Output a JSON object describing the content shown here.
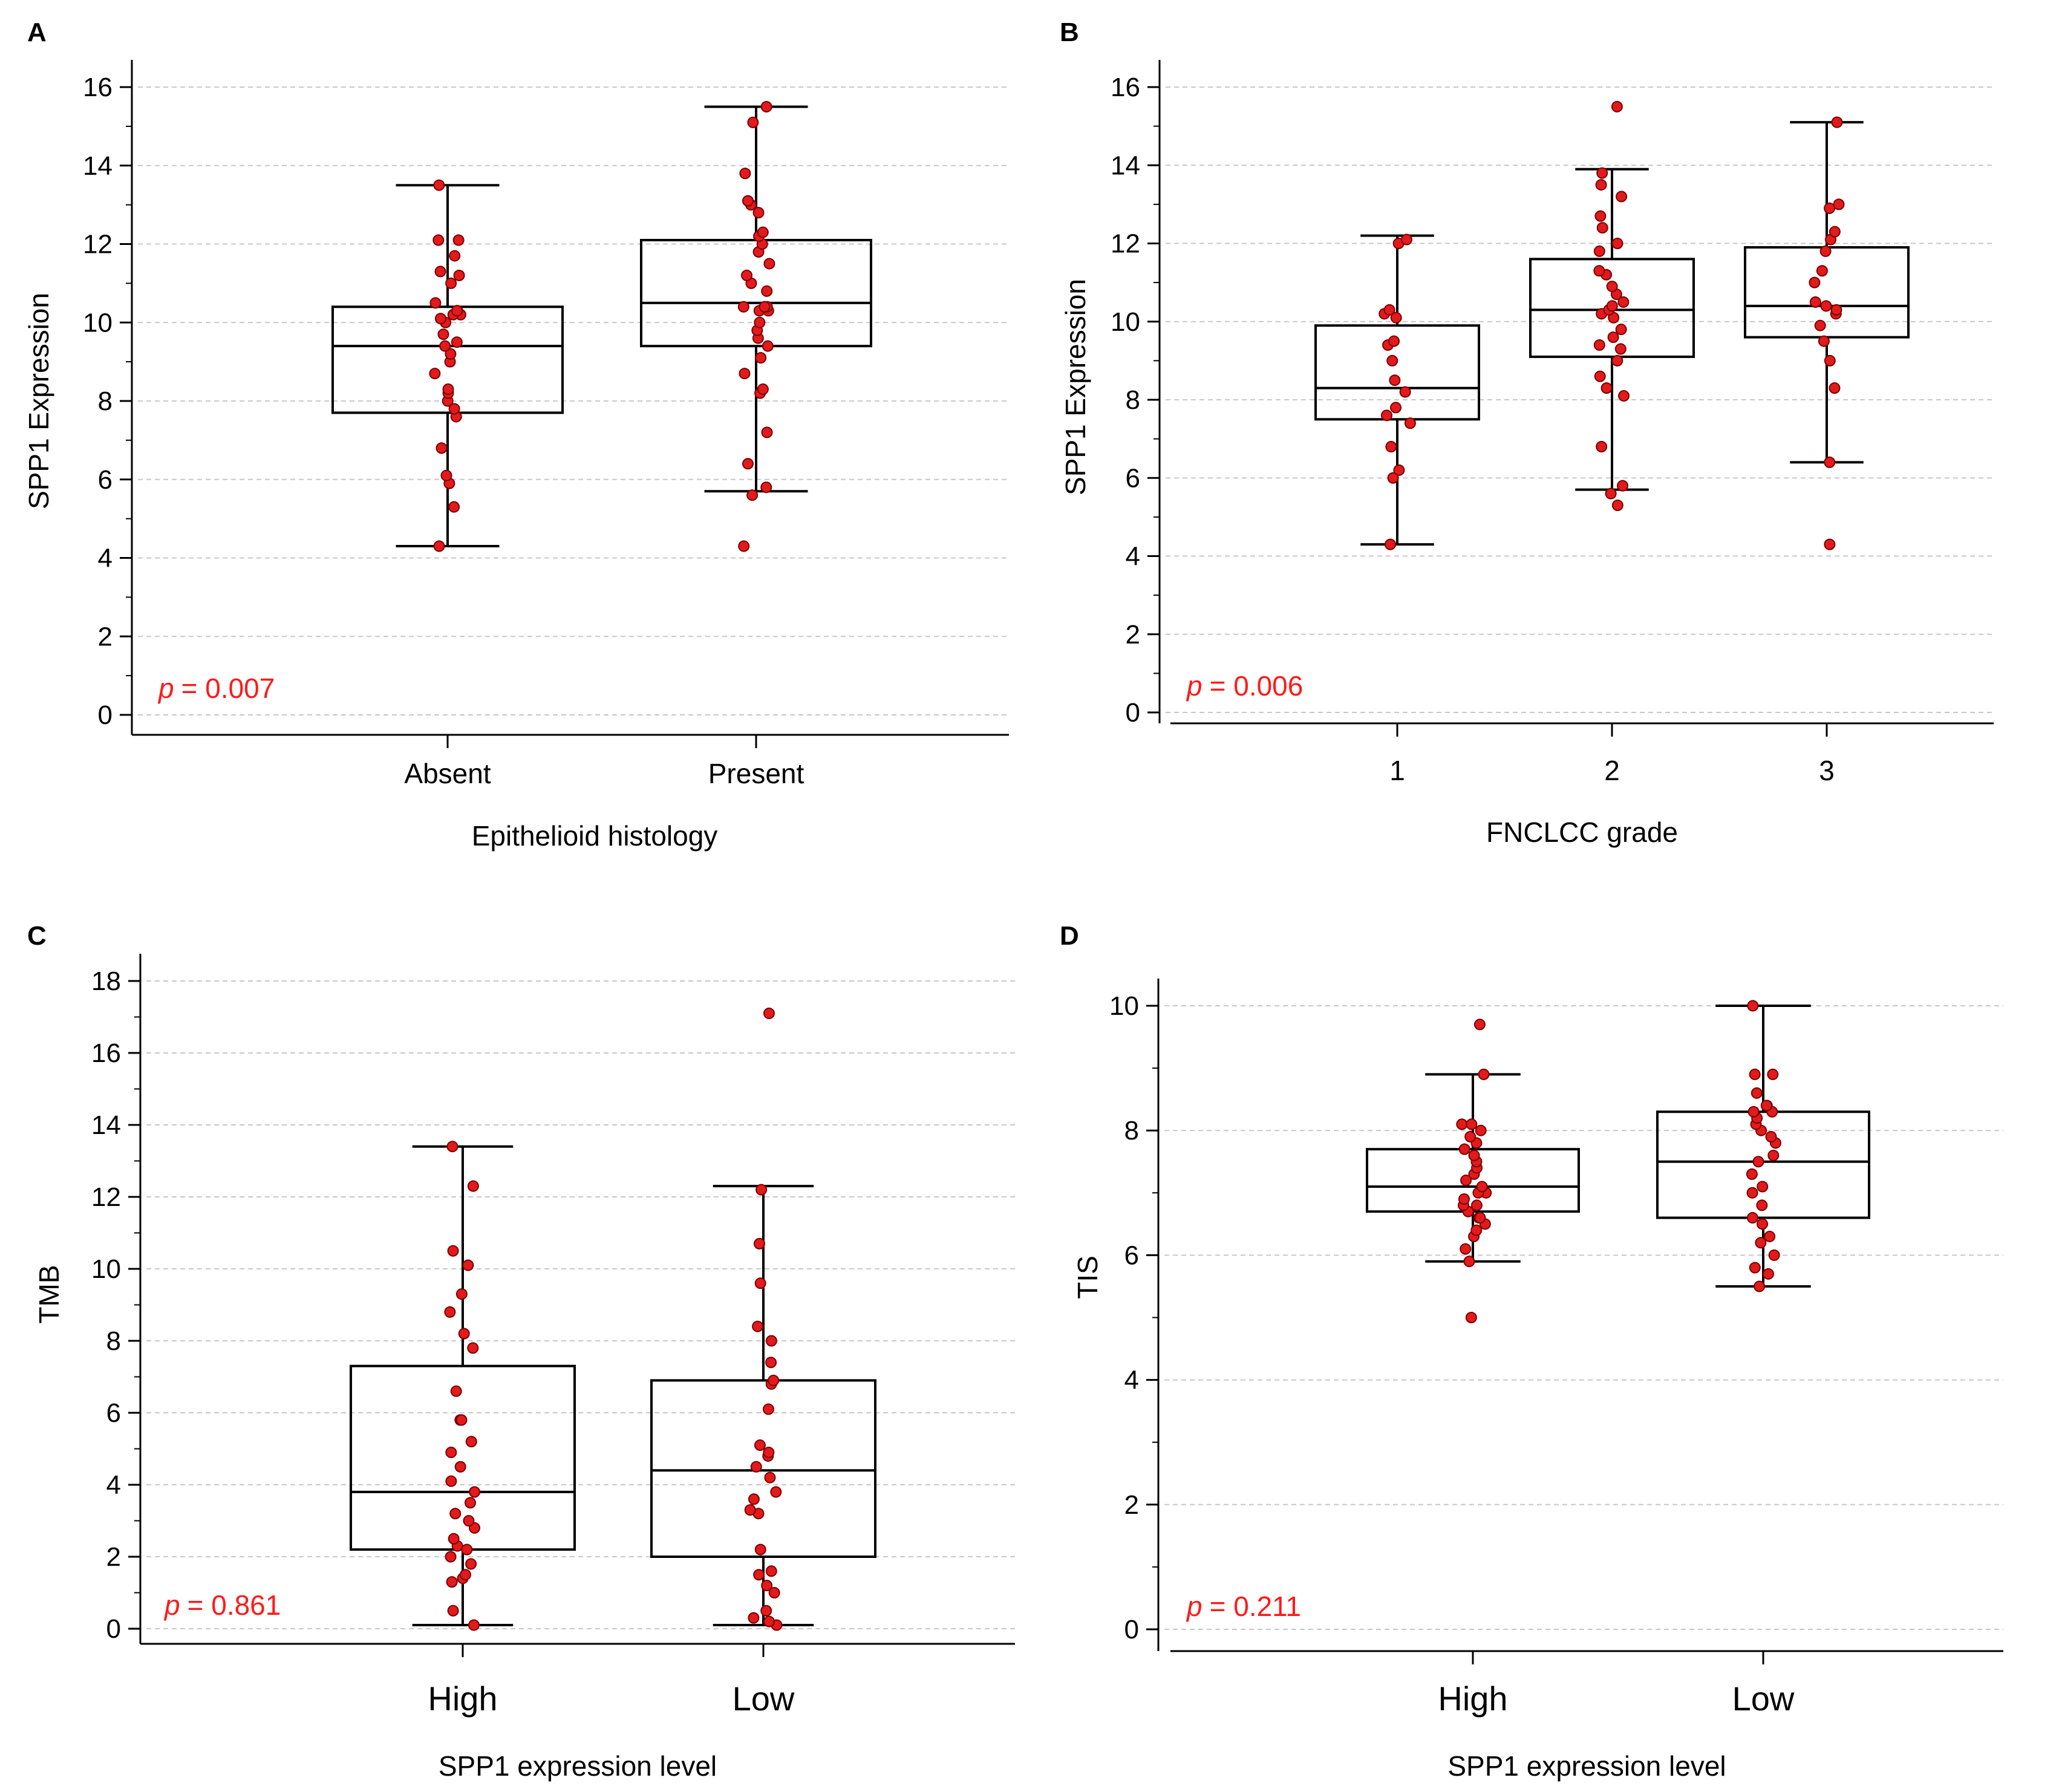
{
  "chart_data": [
    {
      "panel": "A",
      "type": "box",
      "xlabel": "Epithelioid histology",
      "ylabel": "SPP1 Expression",
      "ylim": [
        0,
        16
      ],
      "yticks": [
        0,
        2,
        4,
        6,
        8,
        10,
        12,
        14,
        16
      ],
      "grid": "horizontal dashed",
      "categories": [
        "Absent",
        "Present"
      ],
      "boxes": [
        {
          "label": "Absent",
          "min": 4.3,
          "q1": 7.7,
          "median": 9.4,
          "q3": 10.4,
          "max": 13.5
        },
        {
          "label": "Present",
          "min": 5.7,
          "q1": 9.4,
          "median": 10.5,
          "q3": 12.1,
          "max": 15.5
        }
      ],
      "points": [
        [
          4.3,
          5.3,
          5.9,
          6.1,
          6.8,
          7.6,
          7.8,
          8.0,
          8.2,
          8.3,
          8.7,
          9.0,
          9.2,
          9.4,
          9.5,
          9.7,
          10.0,
          10.1,
          10.2,
          10.2,
          10.3,
          10.3,
          10.5,
          11.0,
          11.2,
          11.3,
          11.7,
          12.1,
          12.1,
          13.5
        ],
        [
          4.3,
          5.6,
          5.8,
          6.4,
          7.2,
          8.2,
          8.3,
          8.7,
          9.1,
          9.4,
          9.6,
          9.8,
          10.0,
          10.3,
          10.3,
          10.4,
          10.4,
          10.4,
          10.8,
          11.0,
          11.2,
          11.5,
          11.8,
          12.0,
          12.2,
          12.3,
          12.8,
          13.0,
          13.1,
          13.8,
          15.1,
          15.5
        ]
      ],
      "annotation": {
        "p_label": "p",
        "p_value": "= 0.007"
      }
    },
    {
      "panel": "B",
      "type": "box",
      "xlabel": "FNCLCC grade",
      "ylabel": "SPP1 Expression",
      "ylim": [
        0,
        16
      ],
      "yticks": [
        0,
        2,
        4,
        6,
        8,
        10,
        12,
        14,
        16
      ],
      "grid": "horizontal dashed",
      "categories": [
        "1",
        "2",
        "3"
      ],
      "boxes": [
        {
          "label": "1",
          "min": 4.3,
          "q1": 7.5,
          "median": 8.3,
          "q3": 9.9,
          "max": 12.2
        },
        {
          "label": "2",
          "min": 5.7,
          "q1": 9.1,
          "median": 10.3,
          "q3": 11.6,
          "max": 13.9
        },
        {
          "label": "3",
          "min": 6.4,
          "q1": 9.6,
          "median": 10.4,
          "q3": 11.9,
          "max": 15.1
        }
      ],
      "points": [
        [
          4.3,
          6.0,
          6.2,
          6.8,
          7.4,
          7.6,
          7.8,
          8.2,
          8.5,
          9.0,
          9.4,
          9.5,
          10.1,
          10.2,
          10.3,
          12.0,
          12.1
        ],
        [
          5.3,
          5.6,
          5.8,
          6.8,
          8.1,
          8.3,
          8.6,
          9.0,
          9.3,
          9.4,
          9.6,
          9.8,
          10.1,
          10.2,
          10.3,
          10.4,
          10.5,
          10.7,
          10.9,
          11.2,
          11.3,
          11.8,
          12.0,
          12.4,
          12.7,
          13.2,
          13.5,
          13.8,
          15.5
        ],
        [
          4.3,
          6.4,
          8.3,
          9.0,
          9.5,
          9.9,
          10.2,
          10.3,
          10.4,
          10.5,
          11.0,
          11.3,
          11.8,
          12.1,
          12.3,
          12.9,
          13.0,
          15.1
        ]
      ],
      "annotation": {
        "p_label": "p",
        "p_value": "= 0.006"
      }
    },
    {
      "panel": "C",
      "type": "box",
      "xlabel": "SPP1 expression level",
      "ylabel": "TMB",
      "ylim": [
        0,
        18
      ],
      "yticks": [
        0,
        2,
        4,
        6,
        8,
        10,
        12,
        14,
        16,
        18
      ],
      "grid": "horizontal dashed",
      "categories": [
        "High",
        "Low"
      ],
      "boxes": [
        {
          "label": "High",
          "min": 0.1,
          "q1": 2.2,
          "median": 3.8,
          "q3": 7.3,
          "max": 13.4
        },
        {
          "label": "Low",
          "min": 0.1,
          "q1": 2.0,
          "median": 4.4,
          "q3": 6.9,
          "max": 12.3
        }
      ],
      "points": [
        [
          0.1,
          0.5,
          1.3,
          1.4,
          1.5,
          1.8,
          2.0,
          2.2,
          2.3,
          2.5,
          2.8,
          3.0,
          3.2,
          3.5,
          3.8,
          4.1,
          4.5,
          4.9,
          5.2,
          5.8,
          5.8,
          6.6,
          7.8,
          8.2,
          8.8,
          9.3,
          10.1,
          10.5,
          12.3,
          13.4
        ],
        [
          0.1,
          0.2,
          0.3,
          0.5,
          1.0,
          1.2,
          1.5,
          1.6,
          2.2,
          3.2,
          3.3,
          3.6,
          3.8,
          4.2,
          4.5,
          4.8,
          4.9,
          5.1,
          6.1,
          6.8,
          6.9,
          7.4,
          8.0,
          8.4,
          9.6,
          10.7,
          12.2,
          17.1
        ]
      ],
      "annotation": {
        "p_label": "p",
        "p_value": "= 0.861"
      }
    },
    {
      "panel": "D",
      "type": "box",
      "xlabel": "SPP1 expression level",
      "ylabel": "TIS",
      "ylim": [
        0,
        10
      ],
      "yticks": [
        0,
        2,
        4,
        6,
        8,
        10
      ],
      "grid": "horizontal dashed",
      "categories": [
        "High",
        "Low"
      ],
      "boxes": [
        {
          "label": "High",
          "min": 5.9,
          "q1": 6.7,
          "median": 7.1,
          "q3": 7.7,
          "max": 8.9
        },
        {
          "label": "Low",
          "min": 5.5,
          "q1": 6.6,
          "median": 7.5,
          "q3": 8.3,
          "max": 10.0
        }
      ],
      "points": [
        [
          5.0,
          5.9,
          6.1,
          6.3,
          6.4,
          6.5,
          6.6,
          6.6,
          6.7,
          6.8,
          6.8,
          6.9,
          7.0,
          7.0,
          7.1,
          7.2,
          7.3,
          7.4,
          7.5,
          7.6,
          7.7,
          7.8,
          7.9,
          8.0,
          8.1,
          8.1,
          8.9,
          9.7
        ],
        [
          5.5,
          5.7,
          5.8,
          6.0,
          6.2,
          6.3,
          6.5,
          6.6,
          6.8,
          7.0,
          7.1,
          7.3,
          7.5,
          7.6,
          7.8,
          7.9,
          8.0,
          8.1,
          8.2,
          8.3,
          8.3,
          8.4,
          8.4,
          8.6,
          8.9,
          8.9,
          10.0
        ]
      ],
      "annotation": {
        "p_label": "p",
        "p_value": "= 0.211"
      }
    }
  ]
}
